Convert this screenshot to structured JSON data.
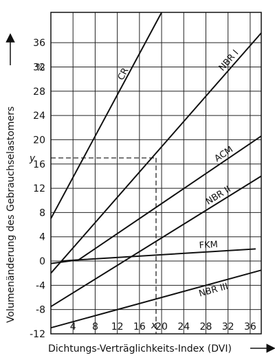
{
  "chart_data": {
    "type": "line",
    "xlabel": "Dichtungs-Verträglichkeits-Index (DVI)",
    "ylabel": "Volumenänderung des Gebrauchselastomers",
    "yunit": "%",
    "xlim": [
      0,
      38
    ],
    "ylim": [
      -12,
      41
    ],
    "x_ticks": [
      4,
      8,
      12,
      16,
      20,
      24,
      28,
      32,
      36
    ],
    "y_ticks": [
      -12,
      -8,
      -4,
      0,
      4,
      8,
      12,
      16,
      20,
      24,
      28,
      32,
      36
    ],
    "grid": true,
    "series": [
      {
        "name": "CR",
        "x": [
          0,
          20
        ],
        "y": [
          7,
          41
        ]
      },
      {
        "name": "NBR I",
        "x": [
          0,
          38
        ],
        "y": [
          -2,
          37.6
        ]
      },
      {
        "name": "ACM",
        "x": [
          2,
          5,
          38
        ],
        "y": [
          0,
          0.2,
          20.6
        ]
      },
      {
        "name": "NBR II",
        "x": [
          0,
          38
        ],
        "y": [
          -7.5,
          14
        ]
      },
      {
        "name": "FKM",
        "x": [
          0,
          5,
          37
        ],
        "y": [
          -0.4,
          0.2,
          2
        ]
      },
      {
        "name": "NBR III",
        "x": [
          0,
          38
        ],
        "y": [
          -11,
          -1.5
        ]
      }
    ],
    "annotations": {
      "x_marker": {
        "label": "x",
        "value": 19
      },
      "y_marker": {
        "label": "y",
        "value": 17
      }
    }
  }
}
